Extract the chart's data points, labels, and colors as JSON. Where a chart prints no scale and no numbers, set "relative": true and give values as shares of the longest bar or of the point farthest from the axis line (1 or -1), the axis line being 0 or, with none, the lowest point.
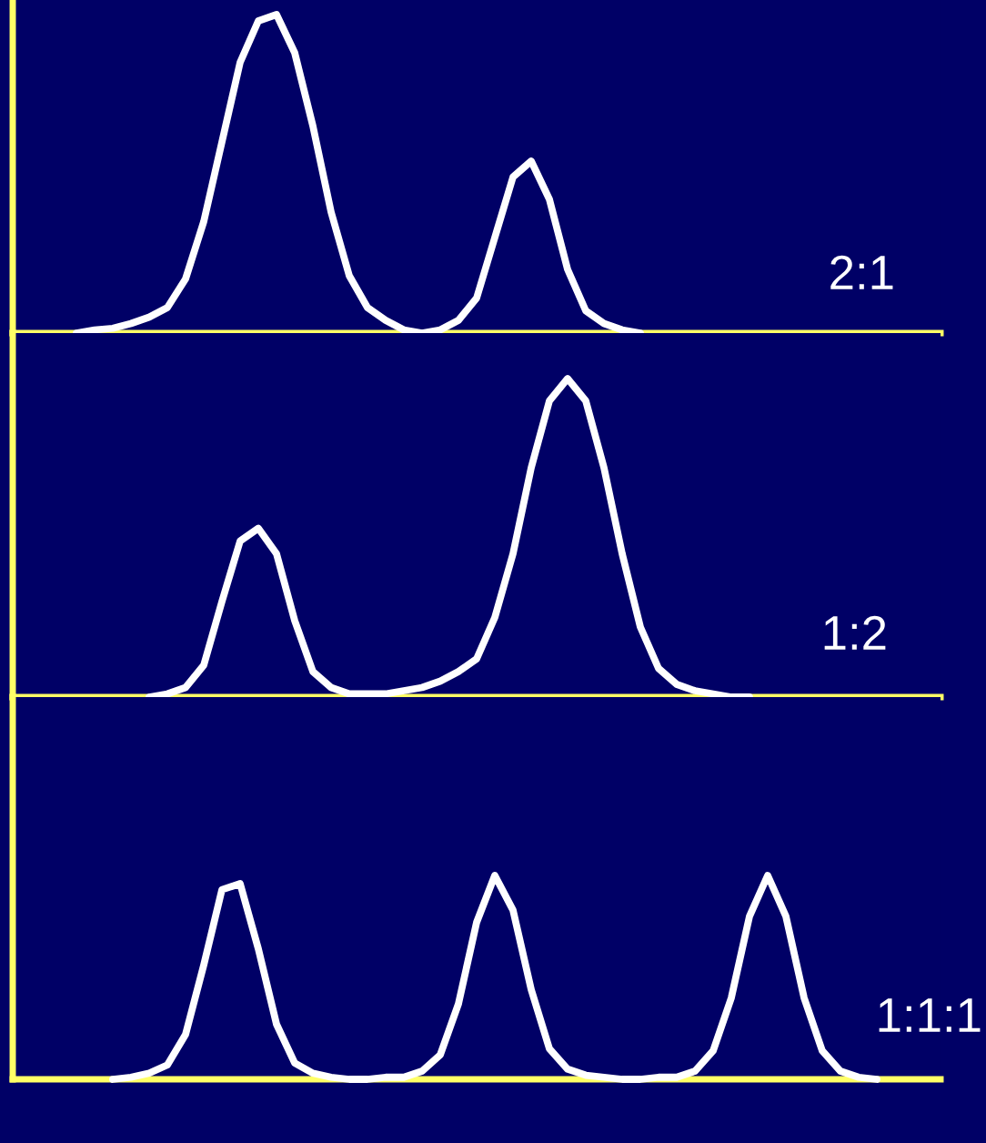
{
  "chart_data": [
    {
      "type": "line",
      "relative": true,
      "categories": [
        null,
        null,
        null,
        null,
        null,
        null,
        null,
        null,
        null,
        null,
        null,
        null,
        null,
        null,
        null,
        null,
        null,
        null,
        null,
        null,
        null,
        null,
        null,
        null,
        null,
        null,
        null,
        null,
        null,
        null,
        null,
        null
      ],
      "series": [
        {
          "color": "#ffffff",
          "values": [
            0.0,
            0.01,
            0.015,
            0.03,
            0.05,
            0.08,
            0.17,
            0.35,
            0.6,
            0.85,
            0.98,
            1.0,
            0.88,
            0.65,
            0.38,
            0.18,
            0.08,
            0.04,
            0.01,
            0.0,
            0.01,
            0.04,
            0.11,
            0.3,
            0.49,
            0.54,
            0.42,
            0.2,
            0.07,
            0.03,
            0.01,
            0.0
          ]
        }
      ],
      "annotations": [
        "2:1"
      ],
      "marker": "none",
      "line_style": "solid"
    },
    {
      "type": "line",
      "relative": true,
      "categories": [
        null,
        null,
        null,
        null,
        null,
        null,
        null,
        null,
        null,
        null,
        null,
        null,
        null,
        null,
        null,
        null,
        null,
        null,
        null,
        null,
        null,
        null,
        null,
        null,
        null,
        null,
        null,
        null,
        null,
        null,
        null,
        null,
        null,
        null
      ],
      "series": [
        {
          "color": "#ffffff",
          "values": [
            0.0,
            0.01,
            0.03,
            0.1,
            0.3,
            0.49,
            0.53,
            0.45,
            0.24,
            0.08,
            0.03,
            0.01,
            0.01,
            0.01,
            0.02,
            0.03,
            0.05,
            0.08,
            0.12,
            0.25,
            0.45,
            0.72,
            0.93,
            1.0,
            0.93,
            0.72,
            0.45,
            0.22,
            0.09,
            0.04,
            0.02,
            0.01,
            0.0,
            0.0
          ]
        }
      ],
      "annotations": [
        "1:2"
      ],
      "marker": "none",
      "line_style": "solid"
    },
    {
      "type": "line",
      "relative": true,
      "categories": [
        null,
        null,
        null,
        null,
        null,
        null,
        null,
        null,
        null,
        null,
        null,
        null,
        null,
        null,
        null,
        null,
        null,
        null,
        null,
        null,
        null,
        null,
        null,
        null,
        null,
        null,
        null,
        null,
        null,
        null,
        null,
        null,
        null,
        null,
        null,
        null,
        null,
        null,
        null,
        null,
        null,
        null,
        null
      ],
      "series": [
        {
          "color": "#ffffff",
          "values": [
            0.0,
            0.01,
            0.03,
            0.07,
            0.22,
            0.56,
            0.93,
            0.96,
            0.64,
            0.27,
            0.08,
            0.03,
            0.01,
            0.0,
            0.0,
            0.01,
            0.01,
            0.04,
            0.12,
            0.37,
            0.77,
            1.0,
            0.83,
            0.44,
            0.15,
            0.05,
            0.02,
            0.01,
            0.0,
            0.0,
            0.01,
            0.01,
            0.04,
            0.14,
            0.4,
            0.8,
            1.0,
            0.8,
            0.4,
            0.14,
            0.04,
            0.01,
            0.0
          ]
        }
      ],
      "annotations": [
        "1:1:1"
      ],
      "marker": "none",
      "line_style": "solid"
    }
  ]
}
